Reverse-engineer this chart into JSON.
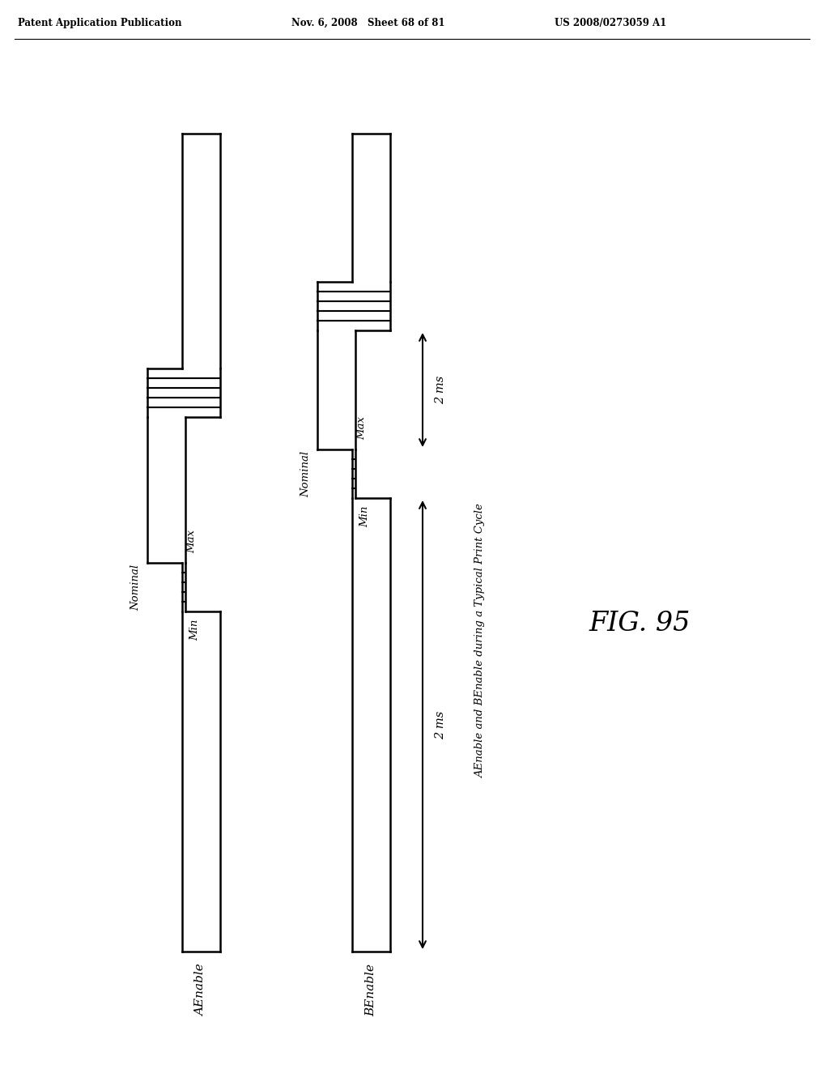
{
  "header_left": "Patent Application Publication",
  "header_mid": "Nov. 6, 2008   Sheet 68 of 81",
  "header_right": "US 2008/0273059 A1",
  "fig_label": "FIG. 95",
  "label_a": "AEnable",
  "label_b": "BEnable",
  "side_label": "AEnable and BEnable during a Typical Print Cycle",
  "time_label": "2 ms",
  "nominal_label": "Nominal",
  "max_label": "Max",
  "min_label": "Min",
  "background_color": "#ffffff",
  "line_color": "#000000"
}
